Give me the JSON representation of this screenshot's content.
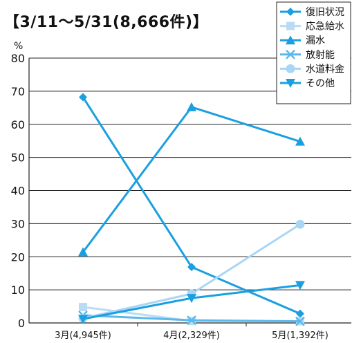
{
  "title": "【3/11～5/31(8,666件)】",
  "chart_data": {
    "type": "line",
    "unit_label": "%",
    "categories": [
      "3月(4,945件)",
      "4月(2,329件)",
      "5月(1,392件)"
    ],
    "ylim": [
      0,
      80
    ],
    "yticks": [
      0,
      10,
      20,
      30,
      40,
      50,
      60,
      70,
      80
    ],
    "grid": true,
    "legend_position": "top-right",
    "series": [
      {
        "name": "復旧状況",
        "values": [
          68.2,
          16.9,
          2.8
        ],
        "color": "#1a9fe0",
        "marker": "diamond"
      },
      {
        "name": "応急給水",
        "values": [
          4.8,
          0.6,
          0.5
        ],
        "color": "#b9dcf4",
        "marker": "square"
      },
      {
        "name": "漏水",
        "values": [
          21.4,
          65.2,
          54.8
        ],
        "color": "#1a9fe0",
        "marker": "triangle-up"
      },
      {
        "name": "放射能",
        "values": [
          2.3,
          0.8,
          0.5
        ],
        "color": "#5ab9ec",
        "marker": "x"
      },
      {
        "name": "水道料金",
        "values": [
          1.4,
          8.8,
          29.8
        ],
        "color": "#a9d6f5",
        "marker": "circle"
      },
      {
        "name": "その他",
        "values": [
          1.2,
          7.5,
          11.4
        ],
        "color": "#1a9fe0",
        "marker": "triangle-down"
      }
    ]
  }
}
